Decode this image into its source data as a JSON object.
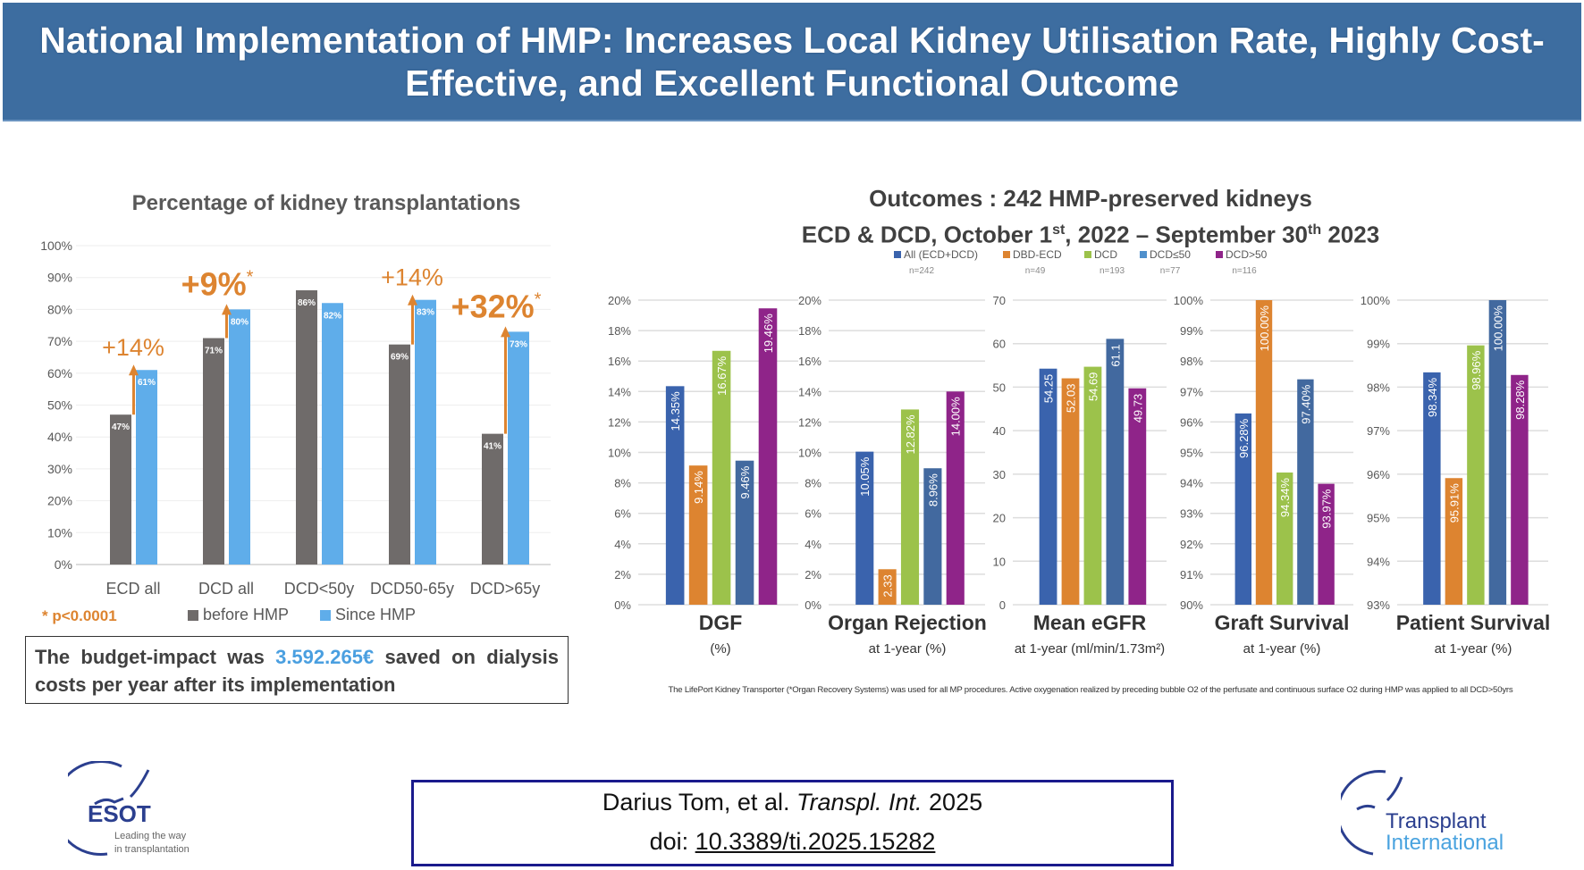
{
  "header": {
    "title": "National Implementation of HMP: Increases Local Kidney Utilisation Rate, Highly Cost-Effective, and Excellent Functional Outcome"
  },
  "left_panel": {
    "title": "Percentage of kidney transplantations",
    "significance_note": "* p<0.0001",
    "budget": {
      "prefix": "The budget-impact was ",
      "amount": "3.592.265€",
      "suffix": " saved on dialysis costs per year after its implementation"
    }
  },
  "right_panel": {
    "title": "Outcomes : 242 HMP-preserved kidneys",
    "subtitle_parts": [
      "ECD & DCD, October 1",
      "st",
      ", 2022 – September 30",
      "th",
      " 2023"
    ],
    "footnote": "The LifePort Kidney Transporter (*Organ Recovery Systems) was used for all MP procedures. Active oxygenation realized by preceding bubble O2 of the perfusate and continuous surface O2 during HMP was applied to all DCD>50yrs"
  },
  "citation": {
    "line1_authors": "Darius Tom, et al. ",
    "line1_journal": "Transpl. Int.",
    "line1_year": " 2025",
    "doi_prefix": "doi: ",
    "doi": "10.3389/ti.2025.15282"
  },
  "logos": {
    "esot": {
      "name": "ESOT",
      "tagline1": "Leading the way",
      "tagline2": "in transplantation"
    },
    "ti": {
      "line1": "Transplant",
      "line2": "International"
    }
  },
  "chart_data": [
    {
      "type": "bar",
      "title": "Percentage of kidney transplantations",
      "categories": [
        "ECD all",
        "DCD all",
        "DCD<50y",
        "DCD50-65y",
        "DCD>65y"
      ],
      "ylim": [
        0,
        100
      ],
      "y_tick_labels": [
        "0%",
        "10%",
        "20%",
        "30%",
        "40%",
        "50%",
        "60%",
        "70%",
        "80%",
        "90%",
        "100%"
      ],
      "grid": true,
      "legend": "bottom",
      "series": [
        {
          "name": "before HMP",
          "color": "#6f6b6a",
          "values": [
            47,
            71,
            86,
            69,
            41
          ],
          "labels": [
            "47%",
            "71%",
            "86%",
            "69%",
            "41%"
          ]
        },
        {
          "name": "Since HMP",
          "color": "#5fadea",
          "values": [
            61,
            80,
            82,
            83,
            73
          ],
          "labels": [
            "61%",
            "80%",
            "82%",
            "83%",
            "73%"
          ]
        }
      ],
      "annotations": [
        {
          "category": "ECD all",
          "label": "+14%",
          "significant": false
        },
        {
          "category": "DCD all",
          "label": "+9%",
          "significant": true
        },
        {
          "category": "DCD50-65y",
          "label": "+14%",
          "significant": false
        },
        {
          "category": "DCD>65y",
          "label": "+32%",
          "significant": true
        }
      ],
      "annotation_color": "#dd8430"
    },
    {
      "type": "bar",
      "title": "DGF",
      "subtitle": "(%)",
      "series_names": [
        "All (ECD+DCD)",
        "DBD-ECD",
        "DCD",
        "DCD≤50",
        "DCD>50"
      ],
      "ylim": [
        0,
        20
      ],
      "y_ticks": [
        0,
        2,
        4,
        6,
        8,
        10,
        12,
        14,
        16,
        18,
        20
      ],
      "y_tick_labels": [
        "0%",
        "2%",
        "4%",
        "6%",
        "8%",
        "10%",
        "12%",
        "14%",
        "16%",
        "18%",
        "20%"
      ],
      "values": [
        14.35,
        9.14,
        16.67,
        9.46,
        19.46
      ],
      "labels": [
        "14.35%",
        "9.14%",
        "16.67%",
        "9.46%",
        "19.46%"
      ]
    },
    {
      "type": "bar",
      "title": "Organ Rejection",
      "subtitle": "at 1-year (%)",
      "series_names": [
        "All (ECD+DCD)",
        "DBD-ECD",
        "DCD",
        "DCD≤50",
        "DCD>50"
      ],
      "ylim": [
        0,
        20
      ],
      "y_ticks": [
        0,
        2,
        4,
        6,
        8,
        10,
        12,
        14,
        16,
        18,
        20
      ],
      "y_tick_labels": [
        "0%",
        "2%",
        "4%",
        "6%",
        "8%",
        "10%",
        "12%",
        "14%",
        "16%",
        "18%",
        "20%"
      ],
      "values": [
        10.05,
        2.33,
        12.82,
        8.96,
        14.0
      ],
      "labels": [
        "10.05%",
        "2.33",
        "12.82%",
        "8.96%",
        "14.00%"
      ]
    },
    {
      "type": "bar",
      "title": "Mean eGFR",
      "subtitle": "at 1-year (ml/min/1.73m²)",
      "series_names": [
        "All (ECD+DCD)",
        "DBD-ECD",
        "DCD",
        "DCD≤50",
        "DCD>50"
      ],
      "ylim": [
        0,
        70
      ],
      "y_ticks": [
        0,
        10,
        20,
        30,
        40,
        50,
        60,
        70
      ],
      "y_tick_labels": [
        "0",
        "10",
        "20",
        "30",
        "40",
        "50",
        "60",
        "70"
      ],
      "values": [
        54.25,
        52.03,
        54.69,
        61.1,
        49.73
      ],
      "labels": [
        "54.25",
        "52.03",
        "54.69",
        "61.1",
        "49.73"
      ]
    },
    {
      "type": "bar",
      "title": "Graft Survival",
      "subtitle": "at 1-year (%)",
      "series_names": [
        "All (ECD+DCD)",
        "DBD-ECD",
        "DCD",
        "DCD≤50",
        "DCD>50"
      ],
      "ylim": [
        90,
        100
      ],
      "y_ticks": [
        90,
        91,
        92,
        93,
        94,
        95,
        96,
        97,
        98,
        99,
        100
      ],
      "y_tick_labels": [
        "90%",
        "91%",
        "92%",
        "93%",
        "94%",
        "95%",
        "96%",
        "97%",
        "98%",
        "99%",
        "100%"
      ],
      "values": [
        96.28,
        100.0,
        94.34,
        97.4,
        93.97
      ],
      "labels": [
        "96.28%",
        "100.00%",
        "94.34%",
        "97.40%",
        "93.97%"
      ]
    },
    {
      "type": "bar",
      "title": "Patient Survival",
      "subtitle": "at 1-year (%)",
      "series_names": [
        "All (ECD+DCD)",
        "DBD-ECD",
        "DCD",
        "DCD≤50",
        "DCD>50"
      ],
      "ylim": [
        93,
        100
      ],
      "y_ticks": [
        93,
        94,
        95,
        96,
        97,
        98,
        99,
        100
      ],
      "y_tick_labels": [
        "93%",
        "94%",
        "95%",
        "96%",
        "97%",
        "98%",
        "99%",
        "100%"
      ],
      "values": [
        98.34,
        95.91,
        98.96,
        100.0,
        98.28
      ],
      "labels": [
        "98.34%",
        "95.91%",
        "98.96%",
        "100.00%",
        "98.28%"
      ]
    }
  ],
  "outcome_legend": [
    {
      "name": "All (ECD+DCD)",
      "n": "n=242",
      "color": "#3a63ad"
    },
    {
      "name": "DBD-ECD",
      "n": "n=49",
      "color": "#dd8430"
    },
    {
      "name": "DCD",
      "n": "n=193",
      "color": "#9cc24b"
    },
    {
      "name": "DCD≤50",
      "n": "n=77",
      "color": "#4f90cc"
    },
    {
      "name": "DCD>50",
      "n": "n=116",
      "color": "#8f2489"
    }
  ],
  "outcome_bar_colors": [
    "#3a63ad",
    "#dd8430",
    "#9cc24b",
    "#42699f",
    "#8f2489"
  ]
}
